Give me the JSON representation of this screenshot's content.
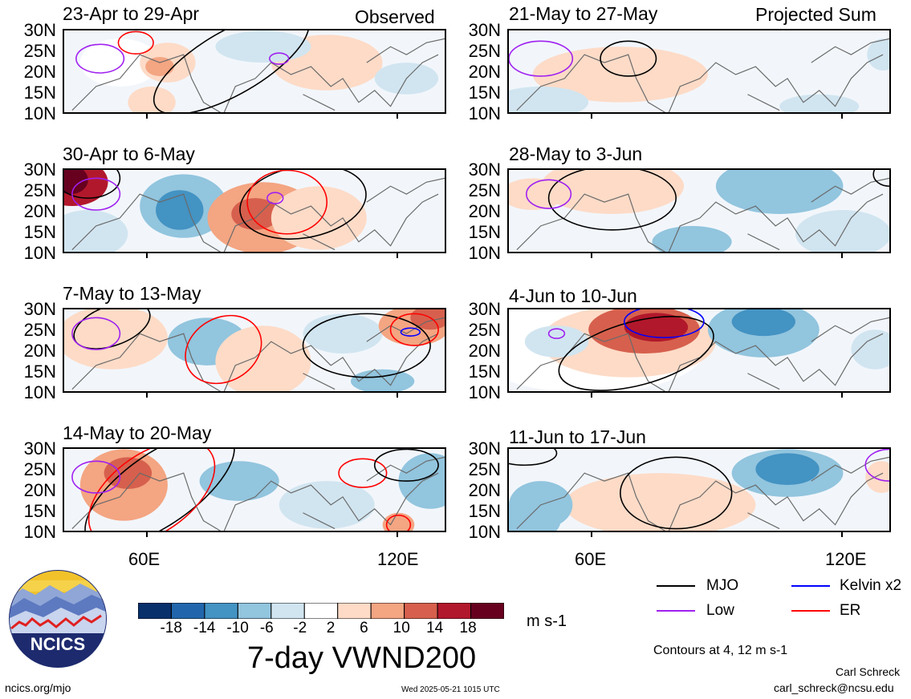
{
  "header": {
    "left_label": "Observed",
    "right_label": "Projected Sum"
  },
  "panels": [
    {
      "title": "23-Apr to 29-Apr",
      "column": "observed"
    },
    {
      "title": "30-Apr to 6-May",
      "column": "observed"
    },
    {
      "title": "7-May to 13-May",
      "column": "observed"
    },
    {
      "title": "14-May to 20-May",
      "column": "observed"
    },
    {
      "title": "21-May to 27-May",
      "column": "projected"
    },
    {
      "title": "28-May to 3-Jun",
      "column": "projected"
    },
    {
      "title": "4-Jun to 10-Jun",
      "column": "projected"
    },
    {
      "title": "11-Jun to 17-Jun",
      "column": "projected"
    }
  ],
  "lat_labels": [
    "30N",
    "25N",
    "20N",
    "15N",
    "10N"
  ],
  "lon_labels": [
    "60E",
    "120E"
  ],
  "colorbar": {
    "ticks": [
      "-18",
      "-14",
      "-10",
      "-6",
      "-2",
      "2",
      "6",
      "10",
      "14",
      "18"
    ],
    "colors": [
      "#08306b",
      "#2166ac",
      "#4393c3",
      "#92c5de",
      "#d1e5f0",
      "#ffffff",
      "#fddbc7",
      "#f4a582",
      "#d6604d",
      "#b2182b",
      "#67001f"
    ],
    "units": "m s-1",
    "title": "7-day VWND200"
  },
  "legend": {
    "items": [
      {
        "label": "MJO",
        "color": "#000000"
      },
      {
        "label": "Kelvin x2",
        "color": "#0000ff"
      },
      {
        "label": "Low",
        "color": "#a020f0"
      },
      {
        "label": "ER",
        "color": "#ff0000"
      }
    ],
    "note": "Contours at 4, 12 m s-1"
  },
  "logo": {
    "text": "NCICS"
  },
  "footer": {
    "url": "ncics.org/mjo",
    "timestamp": "Wed 2025-05-21 1015 UTC",
    "author": "Carl Schreck",
    "email": "carl_schreck@ncsu.edu"
  }
}
